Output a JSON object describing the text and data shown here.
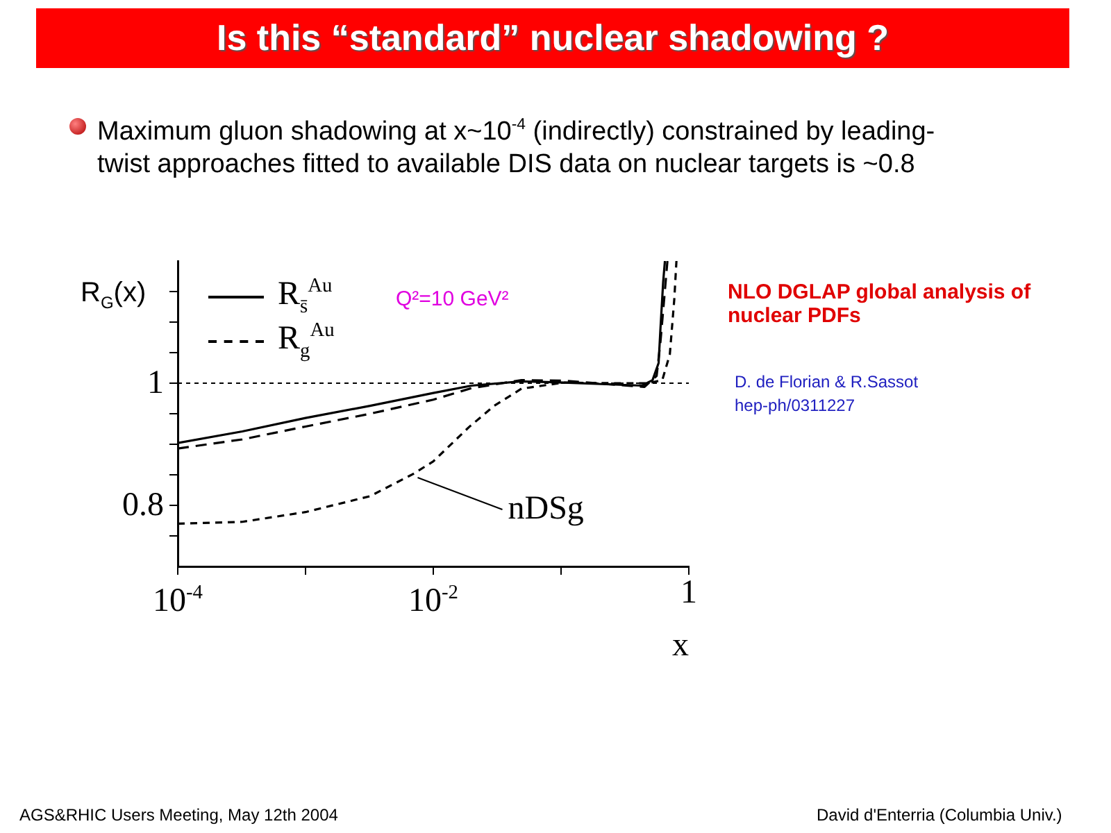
{
  "chart_data": {
    "type": "line",
    "title": "Is this “standard” nuclear shadowing ?",
    "subtitle": "Maximum gluon shadowing at x~10$^{-4}$ (indirectly) constrained by leading-twist approaches fitted to available DIS data on nuclear targets is ~0.8",
    "xlabel": "x",
    "ylabel": "R$_{G}$(x)",
    "log": "x",
    "grid": false,
    "legend": "top left",
    "marker": "none",
    "xlim": [
      0.0001,
      1
    ],
    "ylim": [
      0.7,
      1.2
    ],
    "xticks": [
      {
        "value": 0.0001,
        "label": "10$^{-4}$"
      },
      {
        "value": 0.001,
        "label": null
      },
      {
        "value": 0.01,
        "label": "10$^{-2}$"
      },
      {
        "value": 0.1,
        "label": null
      },
      {
        "value": 1,
        "label": "1"
      }
    ],
    "yticks": [
      {
        "value": 0.75,
        "label": null
      },
      0.8,
      {
        "value": 0.85,
        "label": null
      },
      {
        "value": 0.9,
        "label": null
      },
      {
        "value": 0.95,
        "label": null
      },
      1,
      {
        "value": 1.05,
        "label": null
      },
      {
        "value": 1.1,
        "label": null
      },
      {
        "value": 1.15,
        "label": null
      }
    ],
    "series": [
      {
        "name": "R$_{s̄}$$^{Au}$",
        "color": "#000000",
        "line_style": "solid",
        "x": [
          0.0001,
          0.00032,
          0.001,
          0.0032,
          0.01,
          0.02,
          0.049,
          0.105,
          0.245,
          0.43,
          0.52,
          0.58,
          0.6,
          0.63,
          0.65
        ],
        "values": [
          0.902,
          0.921,
          0.943,
          0.963,
          0.984,
          0.996,
          1.003,
          1.001,
          0.998,
          0.996,
          1.005,
          1.033,
          1.09,
          1.166,
          1.2
        ]
      },
      {
        "name": "R$_{g}$$^{Au}$",
        "color": "#000000",
        "line_style": "dashed",
        "x": [
          0.0001,
          0.00032,
          0.001,
          0.0032,
          0.01,
          0.02,
          0.049,
          0.105,
          0.245,
          0.45,
          0.56,
          0.6,
          0.65,
          0.68
        ],
        "values": [
          0.893,
          0.908,
          0.929,
          0.95,
          0.973,
          0.992,
          1.005,
          1.004,
          0.998,
          0.994,
          1.012,
          1.068,
          1.152,
          1.2
        ]
      },
      {
        "color": "#000000",
        "line_style": "dotted",
        "x": [
          0.0001,
          0.00032,
          0.001,
          0.0032,
          0.0069,
          0.01,
          0.019,
          0.03,
          0.049,
          0.105,
          0.245,
          0.48,
          0.62,
          0.71,
          0.77,
          0.8
        ],
        "values": [
          0.77,
          0.773,
          0.789,
          0.815,
          0.851,
          0.872,
          0.928,
          0.963,
          0.991,
          1.001,
          1.0,
          1.0,
          1.005,
          1.047,
          1.138,
          1.2
        ]
      }
    ],
    "ref_lines": [
      {
        "axis": "y",
        "value": 1,
        "line_style": "dashed",
        "color": "#000000"
      }
    ],
    "annotations": [
      {
        "text": "nDSg",
        "x": 0.007,
        "y": 0.85
      },
      "Q²=10 GeV²",
      "NLO DGLAP global analysis of nuclear PDFs",
      "D. de Florian & R.Sassot",
      "hep-ph/0311227",
      "AGS&RHIC Users Meeting, May 12th 2004",
      "David d'Enterria (Columbia Univ.)"
    ]
  }
}
